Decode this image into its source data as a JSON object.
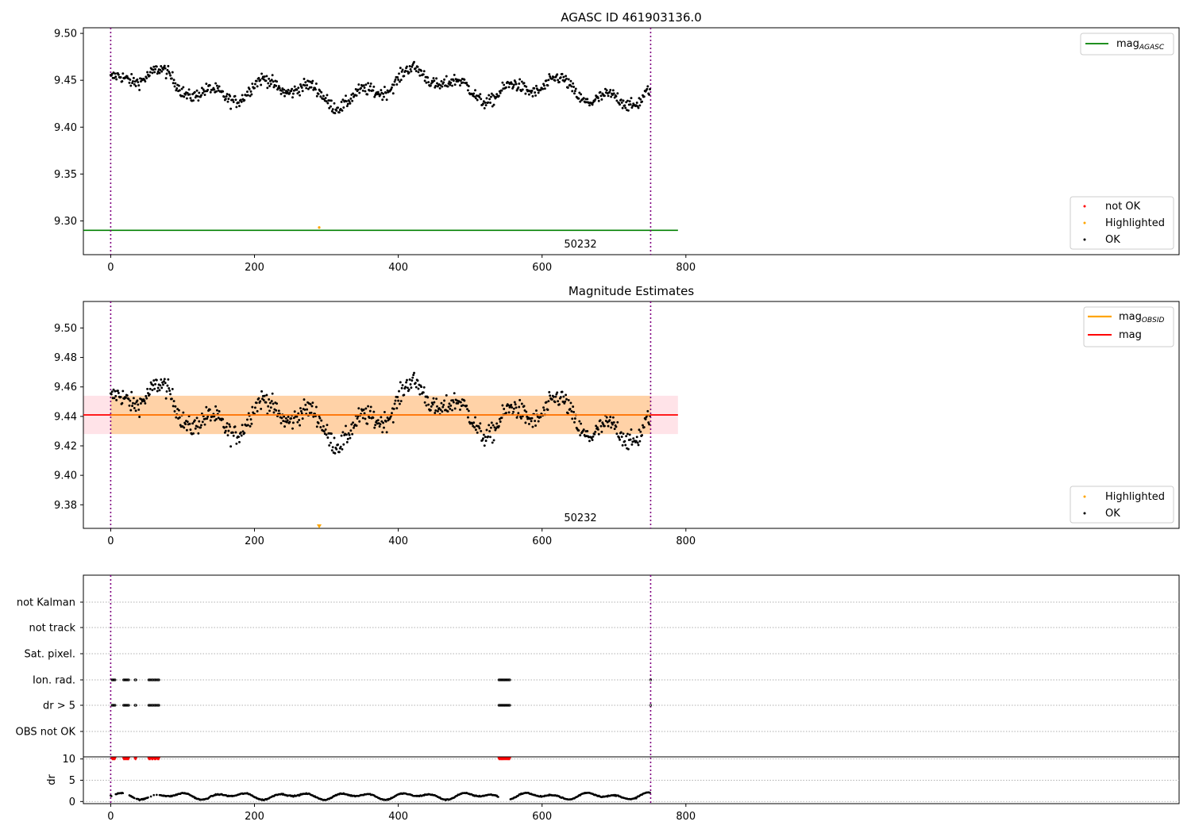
{
  "chart_data": [
    {
      "type": "scatter",
      "title": "AGASC ID 461903136.0",
      "xlim": [
        -38,
        1486
      ],
      "ylim": [
        9.264,
        9.506
      ],
      "xticks": [
        "0",
        "200",
        "400",
        "600",
        "800"
      ],
      "yticks": [
        "9.30",
        "9.35",
        "9.40",
        "9.45",
        "9.50"
      ],
      "reference_line": {
        "name": "mag_AGASC",
        "value": 9.29,
        "color": "#008000"
      },
      "obsid_boundaries": [
        0,
        751
      ],
      "obsid_label": "50232",
      "highlighted_points": [
        {
          "x": 290,
          "y": 9.293
        }
      ],
      "series": [
        {
          "name": "not OK",
          "color": "#ff0000",
          "count": 0
        },
        {
          "name": "Highlighted",
          "color": "#ffa500",
          "count": 1
        },
        {
          "name": "OK",
          "color": "#000000",
          "count": 751,
          "x_range": [
            0,
            751
          ],
          "y_range": [
            9.405,
            9.475
          ],
          "approx_mean": 9.441
        }
      ],
      "legends": [
        {
          "placement": "top-right",
          "entries": [
            {
              "label": "mag",
              "sub": "AGASC",
              "kind": "line",
              "color": "#008000"
            }
          ]
        },
        {
          "placement": "bottom-right",
          "entries": [
            {
              "label": "not OK",
              "kind": "dot",
              "color": "#ff0000"
            },
            {
              "label": "Highlighted",
              "kind": "dot",
              "color": "#ffa500"
            },
            {
              "label": "OK",
              "kind": "dot",
              "color": "#000000"
            }
          ]
        }
      ]
    },
    {
      "type": "scatter",
      "title": "Magnitude Estimates",
      "xlim": [
        -38,
        1486
      ],
      "ylim": [
        9.364,
        9.518
      ],
      "xticks": [
        "0",
        "200",
        "400",
        "600",
        "800"
      ],
      "yticks": [
        "9.38",
        "9.40",
        "9.42",
        "9.44",
        "9.46",
        "9.48",
        "9.50"
      ],
      "mag_line": {
        "name": "mag",
        "value": 9.441,
        "color": "#ff0000"
      },
      "mag_band": {
        "low": 9.428,
        "high": 9.454,
        "x_end": 789
      },
      "obsid_band": {
        "low": 9.428,
        "high": 9.454,
        "x_start": 0,
        "x_end": 751
      },
      "obsid_boundaries": [
        0,
        751
      ],
      "obsid_label": "50232",
      "highlighted_marker": {
        "x": 290,
        "note": "below axis"
      },
      "series": [
        {
          "name": "Highlighted",
          "color": "#ffa500",
          "count": 1
        },
        {
          "name": "OK",
          "color": "#000000",
          "count": 751,
          "x_range": [
            0,
            751
          ],
          "y_range": [
            9.405,
            9.475
          ]
        }
      ],
      "legends": [
        {
          "placement": "top-right",
          "entries": [
            {
              "label": "mag",
              "sub": "OBSID",
              "kind": "line",
              "color": "#ffa500"
            },
            {
              "label": "mag",
              "sub": "",
              "kind": "line",
              "color": "#ff0000"
            }
          ]
        },
        {
          "placement": "bottom-right",
          "entries": [
            {
              "label": "Highlighted",
              "kind": "dot",
              "color": "#ffa500"
            },
            {
              "label": "OK",
              "kind": "dot",
              "color": "#000000"
            }
          ]
        }
      ]
    },
    {
      "type": "scatter",
      "title": "",
      "xlim": [
        -38,
        1486
      ],
      "categories": [
        "not Kalman",
        "not track",
        "Sat. pixel.",
        "Ion. rad.",
        "dr > 5",
        "OBS not OK"
      ],
      "flag_ranges": {
        "Ion. rad.": [
          [
            2,
            6
          ],
          [
            18,
            25
          ],
          [
            34,
            35
          ],
          [
            53,
            68
          ],
          [
            540,
            555
          ],
          [
            751,
            751
          ]
        ],
        "dr > 5": [
          [
            2,
            6
          ],
          [
            18,
            25
          ],
          [
            34,
            35
          ],
          [
            53,
            68
          ],
          [
            540,
            555
          ],
          [
            751,
            751
          ]
        ]
      },
      "dr_panel": {
        "ylabel": "dr",
        "yticks": [
          "0",
          "5",
          "10"
        ],
        "ylim": [
          -0.5,
          10.5
        ],
        "clipped_value": 10,
        "clipped_color": "#ff0000",
        "x_range": [
          0,
          751
        ],
        "y_range": [
          0.2,
          2.4
        ]
      },
      "obsid_boundaries": [
        0,
        751
      ],
      "xticks": [
        "0",
        "200",
        "400",
        "600",
        "800"
      ]
    }
  ]
}
